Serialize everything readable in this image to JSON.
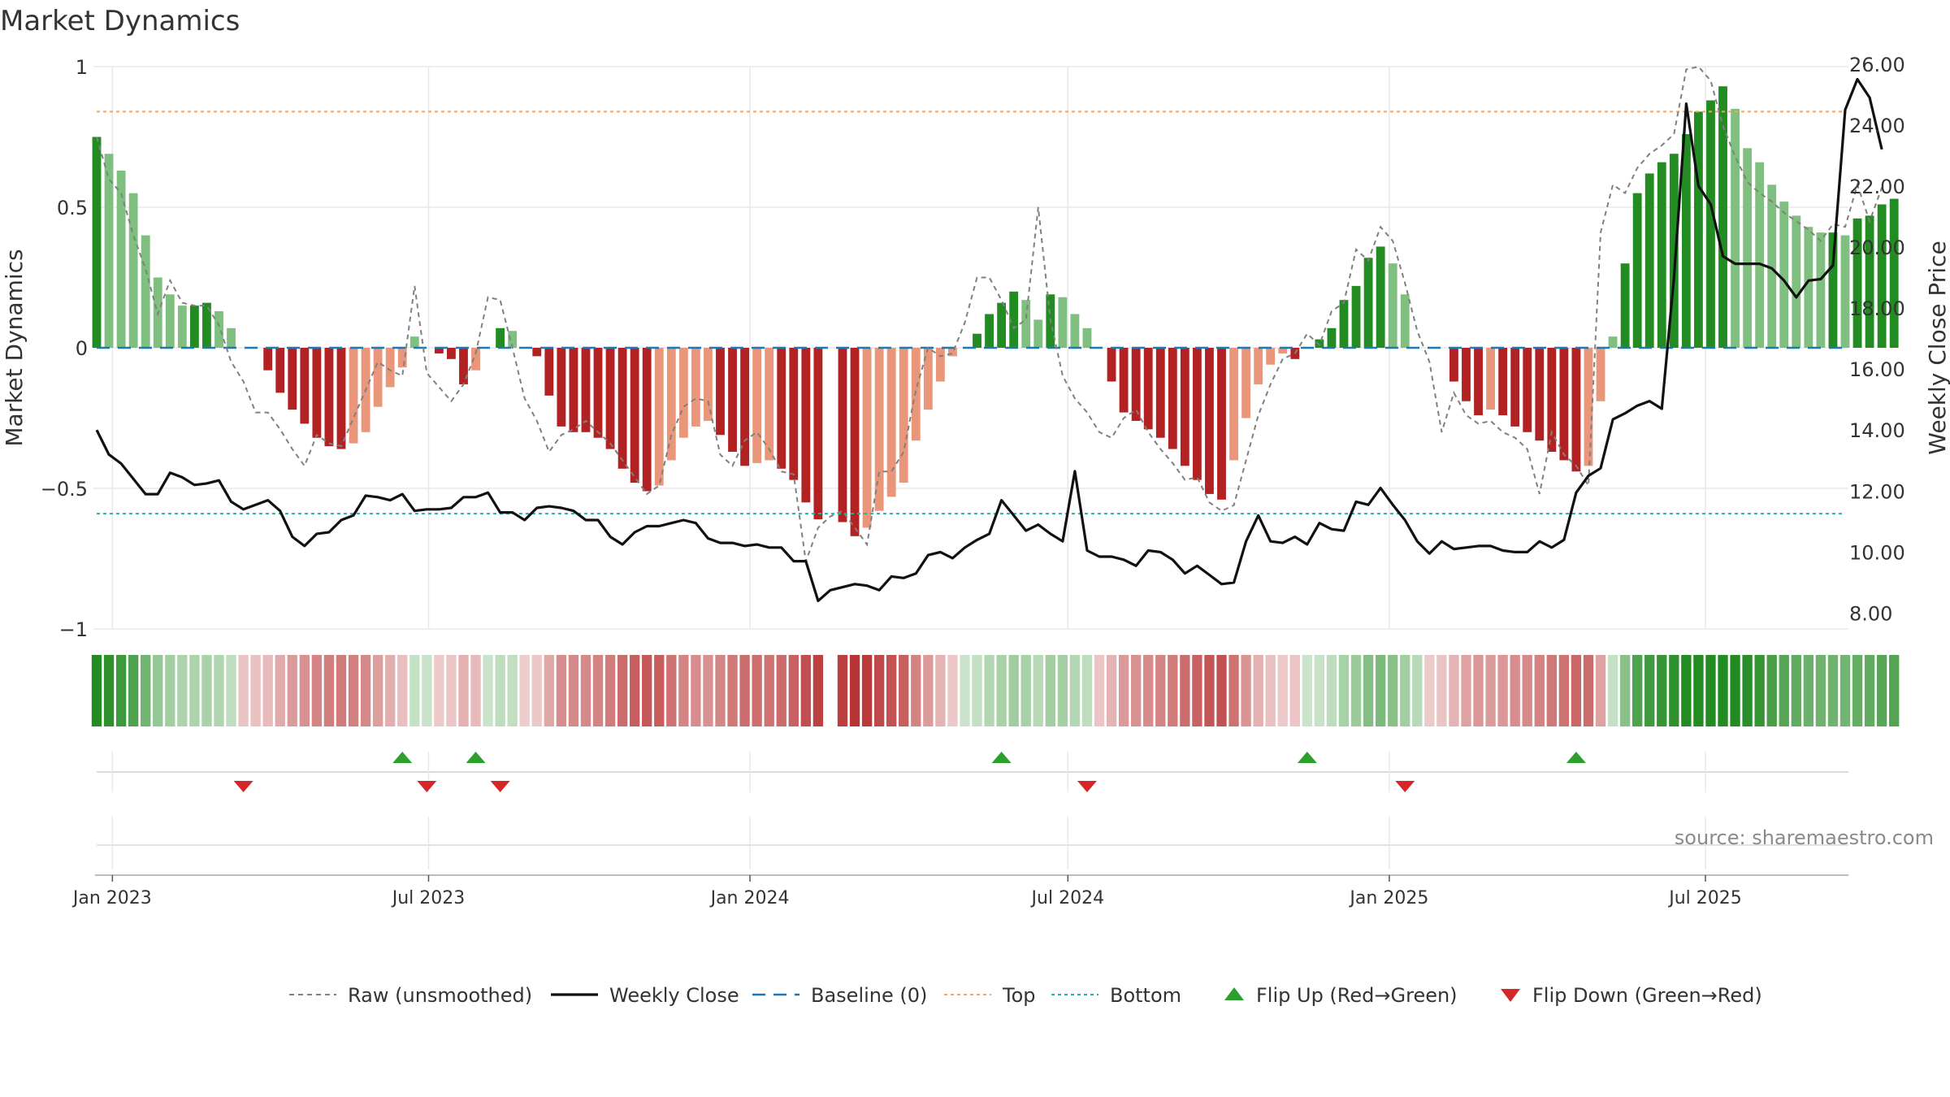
{
  "chart_data": {
    "type": "combo",
    "title": "Market Dynamics",
    "ylabel_left": "Market Dynamics",
    "ylabel_right": "Weekly Close Price",
    "source": "source: sharemaestro.com",
    "left_axis": {
      "ylim": [
        -1,
        1
      ],
      "ticks": [
        -1,
        -0.5,
        0,
        0.5,
        1
      ],
      "tick_labels": [
        "−1",
        "−0.5",
        "0",
        "0.5",
        "1"
      ]
    },
    "right_axis": {
      "ylim": [
        7.0,
        26.5
      ],
      "ticks": [
        8,
        10,
        12,
        14,
        16,
        18,
        20,
        22,
        24,
        26
      ],
      "tick_labels": [
        "8.00",
        "10.00",
        "12.00",
        "14.00",
        "16.00",
        "18.00",
        "20.00",
        "22.00",
        "24.00",
        "26.00"
      ]
    },
    "x_axis": {
      "start": "2022-12-23",
      "end": "2025-09-19",
      "ticks": [
        {
          "date": "2023-01-01",
          "label": "Jan 2023"
        },
        {
          "date": "2023-07-01",
          "label": "Jul 2023"
        },
        {
          "date": "2024-01-01",
          "label": "Jan 2024"
        },
        {
          "date": "2024-07-01",
          "label": "Jul 2024"
        },
        {
          "date": "2025-01-01",
          "label": "Jan 2025"
        },
        {
          "date": "2025-07-01",
          "label": "Jul 2025"
        }
      ]
    },
    "reference_lines": {
      "top": 0.84,
      "bottom": -0.59,
      "baseline": 0
    },
    "series": {
      "dates": [
        "2022-12-23",
        "2022-12-30",
        "2023-01-06",
        "2023-01-13",
        "2023-01-20",
        "2023-01-27",
        "2023-02-03",
        "2023-02-10",
        "2023-02-17",
        "2023-02-24",
        "2023-03-03",
        "2023-03-10",
        "2023-03-17",
        "2023-03-24",
        "2023-03-31",
        "2023-04-07",
        "2023-04-14",
        "2023-04-21",
        "2023-04-28",
        "2023-05-05",
        "2023-05-12",
        "2023-05-19",
        "2023-05-26",
        "2023-06-02",
        "2023-06-09",
        "2023-06-16",
        "2023-06-23",
        "2023-06-30",
        "2023-07-07",
        "2023-07-14",
        "2023-07-21",
        "2023-07-28",
        "2023-08-04",
        "2023-08-11",
        "2023-08-18",
        "2023-08-25",
        "2023-09-01",
        "2023-09-08",
        "2023-09-15",
        "2023-09-22",
        "2023-09-29",
        "2023-10-06",
        "2023-10-13",
        "2023-10-20",
        "2023-10-27",
        "2023-11-03",
        "2023-11-10",
        "2023-11-17",
        "2023-11-24",
        "2023-12-01",
        "2023-12-08",
        "2023-12-15",
        "2023-12-22",
        "2023-12-29",
        "2024-01-05",
        "2024-01-12",
        "2024-01-19",
        "2024-01-26",
        "2024-02-02",
        "2024-02-09",
        "2024-02-16",
        "2024-02-23",
        "2024-03-01",
        "2024-03-08",
        "2024-03-15",
        "2024-03-22",
        "2024-03-29",
        "2024-04-05",
        "2024-04-12",
        "2024-04-19",
        "2024-04-26",
        "2024-05-03",
        "2024-05-10",
        "2024-05-17",
        "2024-05-24",
        "2024-05-31",
        "2024-06-07",
        "2024-06-14",
        "2024-06-21",
        "2024-06-28",
        "2024-07-05",
        "2024-07-12",
        "2024-07-19",
        "2024-07-26",
        "2024-08-02",
        "2024-08-09",
        "2024-08-16",
        "2024-08-23",
        "2024-08-30",
        "2024-09-06",
        "2024-09-13",
        "2024-09-20",
        "2024-09-27",
        "2024-10-04",
        "2024-10-11",
        "2024-10-18",
        "2024-10-25",
        "2024-11-01",
        "2024-11-08",
        "2024-11-15",
        "2024-11-22",
        "2024-11-29",
        "2024-12-06",
        "2024-12-13",
        "2024-12-20",
        "2024-12-27",
        "2025-01-03",
        "2025-01-10",
        "2025-01-17",
        "2025-01-24",
        "2025-01-31",
        "2025-02-07",
        "2025-02-14",
        "2025-02-21",
        "2025-02-28",
        "2025-03-07",
        "2025-03-14",
        "2025-03-21",
        "2025-03-28",
        "2025-04-04",
        "2025-04-11",
        "2025-04-18",
        "2025-04-25",
        "2025-05-02",
        "2025-05-09",
        "2025-05-16",
        "2025-05-23",
        "2025-05-30",
        "2025-06-06",
        "2025-06-13",
        "2025-06-20",
        "2025-06-27",
        "2025-07-04",
        "2025-07-11",
        "2025-07-18",
        "2025-07-25",
        "2025-08-01",
        "2025-08-08",
        "2025-08-15",
        "2025-08-22",
        "2025-08-29",
        "2025-09-05",
        "2025-09-12",
        "2025-09-19"
      ],
      "market_dynamics": [
        0.75,
        0.69,
        0.63,
        0.55,
        0.4,
        0.25,
        0.19,
        0.15,
        0.15,
        0.16,
        0.13,
        0.07,
        0,
        0,
        -0.08,
        -0.16,
        -0.22,
        -0.27,
        -0.32,
        -0.35,
        -0.36,
        -0.34,
        -0.3,
        -0.21,
        -0.14,
        -0.07,
        0.04,
        0,
        -0.02,
        -0.04,
        -0.13,
        -0.08,
        0,
        0.07,
        0.06,
        0,
        -0.03,
        -0.17,
        -0.28,
        -0.3,
        -0.3,
        -0.32,
        -0.36,
        -0.43,
        -0.48,
        -0.51,
        -0.49,
        -0.4,
        -0.32,
        -0.28,
        -0.26,
        -0.31,
        -0.37,
        -0.42,
        -0.41,
        -0.4,
        -0.43,
        -0.47,
        -0.55,
        -0.61,
        0,
        -0.62,
        -0.67,
        -0.64,
        -0.58,
        -0.53,
        -0.48,
        -0.33,
        -0.22,
        -0.12,
        -0.03,
        0,
        0.05,
        0.12,
        0.16,
        0.2,
        0.17,
        0.1,
        0.19,
        0.18,
        0.12,
        0.07,
        0,
        -0.12,
        -0.23,
        -0.26,
        -0.29,
        -0.32,
        -0.36,
        -0.42,
        -0.47,
        -0.52,
        -0.54,
        -0.4,
        -0.25,
        -0.13,
        -0.06,
        -0.02,
        -0.04,
        0,
        0.03,
        0.07,
        0.17,
        0.22,
        0.32,
        0.36,
        0.3,
        0.19,
        0,
        0,
        0,
        -0.12,
        -0.19,
        -0.24,
        -0.22,
        -0.24,
        -0.28,
        -0.3,
        -0.33,
        -0.37,
        -0.4,
        -0.44,
        -0.42,
        -0.19,
        0.04,
        0.3,
        0.55,
        0.62,
        0.66,
        0.69,
        0.76,
        0.84,
        0.88,
        0.93,
        0.85,
        0.71,
        0.66,
        0.58,
        0.52,
        0.47,
        0.43,
        0.41,
        0.41,
        0.4,
        0.46,
        0.47,
        0.51,
        0.53
      ],
      "raw_unsmoothed": [
        0.75,
        0.6,
        0.55,
        0.4,
        0.28,
        0.12,
        0.24,
        0.16,
        0.15,
        0.15,
        0.08,
        -0.05,
        -0.12,
        -0.23,
        -0.23,
        -0.29,
        -0.36,
        -0.42,
        -0.31,
        -0.34,
        -0.35,
        -0.25,
        -0.15,
        -0.05,
        -0.08,
        -0.1,
        0.22,
        -0.09,
        -0.14,
        -0.19,
        -0.13,
        -0.02,
        0.18,
        0.17,
        0,
        -0.18,
        -0.26,
        -0.37,
        -0.31,
        -0.29,
        -0.26,
        -0.3,
        -0.34,
        -0.4,
        -0.46,
        -0.52,
        -0.49,
        -0.31,
        -0.21,
        -0.18,
        -0.19,
        -0.38,
        -0.42,
        -0.33,
        -0.3,
        -0.36,
        -0.44,
        -0.45,
        -0.76,
        -0.64,
        -0.6,
        -0.58,
        -0.64,
        -0.7,
        -0.44,
        -0.44,
        -0.37,
        -0.15,
        0.0,
        -0.03,
        -0.02,
        0.09,
        0.25,
        0.25,
        0.17,
        0.07,
        0.1,
        0.5,
        0.1,
        -0.1,
        -0.18,
        -0.23,
        -0.3,
        -0.32,
        -0.25,
        -0.22,
        -0.3,
        -0.36,
        -0.41,
        -0.47,
        -0.46,
        -0.55,
        -0.58,
        -0.56,
        -0.4,
        -0.24,
        -0.13,
        -0.04,
        -0.02,
        0.05,
        0.01,
        0.13,
        0.16,
        0.35,
        0.31,
        0.43,
        0.38,
        0.23,
        0.06,
        -0.05,
        -0.3,
        -0.16,
        -0.24,
        -0.27,
        -0.26,
        -0.3,
        -0.32,
        -0.36,
        -0.52,
        -0.3,
        -0.38,
        -0.42,
        -0.49,
        0.41,
        0.58,
        0.55,
        0.64,
        0.69,
        0.72,
        0.76,
        0.99,
        1.0,
        0.95,
        0.79,
        0.68,
        0.59,
        0.55,
        0.52,
        0.48,
        0.45,
        0.42,
        0.38,
        0.44,
        0.43,
        0.58,
        0.45,
        0.57
      ],
      "weekly_close": [
        14.0,
        13.2,
        12.9,
        12.4,
        11.9,
        11.9,
        12.6,
        12.45,
        12.2,
        12.25,
        12.35,
        11.65,
        11.4,
        11.55,
        11.7,
        11.35,
        10.5,
        10.2,
        10.6,
        10.65,
        11.05,
        11.2,
        11.85,
        11.8,
        11.7,
        11.9,
        11.35,
        11.4,
        11.4,
        11.45,
        11.8,
        11.8,
        11.95,
        11.3,
        11.3,
        11.05,
        11.45,
        11.5,
        11.45,
        11.35,
        11.05,
        11.05,
        10.5,
        10.25,
        10.65,
        10.85,
        10.85,
        10.95,
        11.05,
        10.95,
        10.45,
        10.3,
        10.3,
        10.2,
        10.25,
        10.15,
        10.15,
        9.7,
        9.7,
        8.4,
        8.75,
        8.85,
        8.95,
        8.9,
        8.75,
        9.2,
        9.15,
        9.3,
        9.9,
        10.0,
        9.8,
        10.15,
        10.4,
        10.6,
        11.7,
        11.2,
        10.7,
        10.9,
        10.6,
        10.35,
        12.65,
        10.05,
        9.85,
        9.85,
        9.75,
        9.55,
        10.05,
        10.0,
        9.75,
        9.3,
        9.55,
        9.25,
        8.95,
        9.0,
        10.35,
        11.2,
        10.35,
        10.3,
        10.5,
        10.25,
        10.95,
        10.75,
        10.7,
        11.65,
        11.55,
        12.1,
        11.55,
        11.05,
        10.35,
        9.95,
        10.35,
        10.1,
        10.15,
        10.2,
        10.2,
        10.05,
        10.0,
        10.0,
        10.35,
        10.15,
        10.4,
        11.95,
        12.5,
        12.75,
        14.35,
        14.55,
        14.8,
        14.95,
        14.7,
        19.0,
        24.7,
        22.0,
        21.4,
        19.7,
        19.45,
        19.45,
        19.45,
        19.3,
        18.9,
        18.35,
        18.9,
        18.95,
        19.4,
        24.5,
        25.5,
        24.9,
        23.2
      ],
      "regime_strip": [
        0.75,
        0.69,
        0.63,
        0.55,
        0.4,
        0.25,
        0.19,
        0.15,
        0.15,
        0.16,
        0.13,
        0.07,
        -0.05,
        -0.06,
        -0.08,
        -0.16,
        -0.22,
        -0.27,
        -0.32,
        -0.35,
        -0.36,
        -0.34,
        -0.3,
        -0.21,
        -0.14,
        -0.07,
        0.04,
        0.03,
        -0.02,
        -0.04,
        -0.13,
        -0.08,
        0.02,
        0.07,
        0.06,
        -0.01,
        -0.03,
        -0.17,
        -0.28,
        -0.3,
        -0.3,
        -0.32,
        -0.36,
        -0.43,
        -0.48,
        -0.51,
        -0.49,
        -0.4,
        -0.32,
        -0.28,
        -0.26,
        -0.31,
        -0.37,
        -0.42,
        -0.41,
        -0.4,
        -0.43,
        -0.47,
        -0.55,
        -0.61,
        null,
        -0.62,
        -0.67,
        -0.64,
        -0.58,
        -0.53,
        -0.48,
        -0.33,
        -0.22,
        -0.12,
        -0.03,
        0.02,
        0.05,
        0.12,
        0.16,
        0.2,
        0.17,
        0.1,
        0.19,
        0.18,
        0.12,
        0.07,
        -0.04,
        -0.12,
        -0.23,
        -0.26,
        -0.29,
        -0.32,
        -0.36,
        -0.42,
        -0.47,
        -0.52,
        -0.54,
        -0.4,
        -0.25,
        -0.13,
        -0.06,
        -0.02,
        -0.04,
        0.02,
        0.03,
        0.07,
        0.17,
        0.22,
        0.32,
        0.36,
        0.3,
        0.19,
        0.1,
        -0.02,
        -0.05,
        -0.12,
        -0.19,
        -0.24,
        -0.22,
        -0.24,
        -0.28,
        -0.3,
        -0.33,
        -0.37,
        -0.4,
        -0.44,
        -0.42,
        -0.19,
        0.04,
        0.3,
        0.55,
        0.62,
        0.66,
        0.69,
        0.76,
        0.84,
        0.88,
        0.93,
        0.85,
        0.71,
        0.66,
        0.58,
        0.52,
        0.47,
        0.43,
        0.41,
        0.41,
        0.4,
        0.46,
        0.47,
        0.51,
        0.53
      ]
    },
    "flips_up": [
      "2023-06-16",
      "2023-07-28",
      "2024-05-24",
      "2024-11-15",
      "2025-04-18"
    ],
    "flips_down": [
      "2023-03-17",
      "2023-06-30",
      "2023-08-11",
      "2024-07-12",
      "2025-01-10"
    ],
    "legend": {
      "position": "bottom-center",
      "items": [
        {
          "key": "raw",
          "label": "Raw (unsmoothed)"
        },
        {
          "key": "close",
          "label": "Weekly Close"
        },
        {
          "key": "baseline",
          "label": "Baseline (0)"
        },
        {
          "key": "top",
          "label": "Top"
        },
        {
          "key": "bottom",
          "label": "Bottom"
        },
        {
          "key": "flip_up",
          "label": "Flip Up (Red→Green)"
        },
        {
          "key": "flip_down",
          "label": "Flip Down (Green→Red)"
        }
      ]
    },
    "colors": {
      "strong_green": "#228b22",
      "light_green": "#7fbf7f",
      "strong_red": "#b22222",
      "light_red": "#e9967a",
      "raw_line": "#808080",
      "close_line": "#111111",
      "baseline": "#1f77b4",
      "top": "#f4a460",
      "bottom": "#20b2aa",
      "flip_up": "#2ca02c",
      "flip_down": "#d62728",
      "grid": "#e8e8e8",
      "text": "#333333"
    }
  }
}
